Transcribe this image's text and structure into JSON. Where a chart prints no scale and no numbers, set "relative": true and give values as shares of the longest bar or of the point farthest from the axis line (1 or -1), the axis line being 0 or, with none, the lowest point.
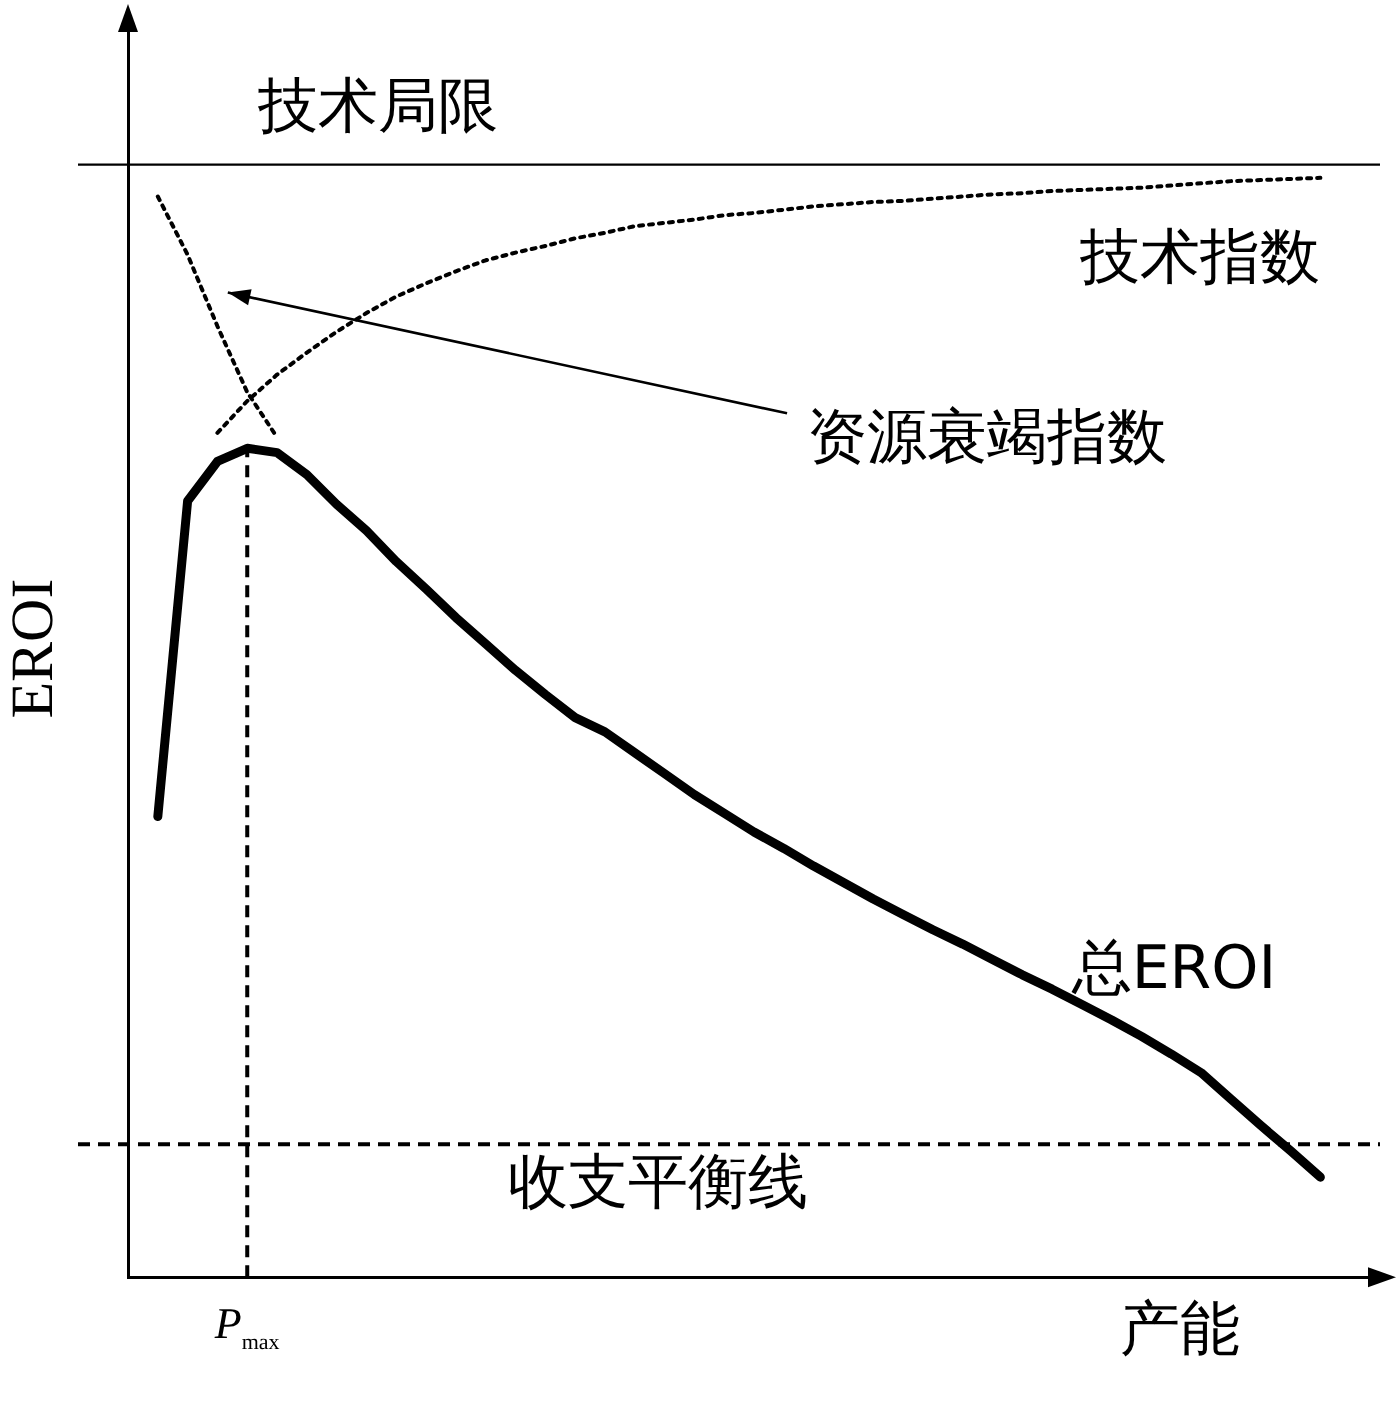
{
  "chart_data": {
    "type": "line",
    "relative": true,
    "xlabel": "产能",
    "ylabel": "EROI",
    "grid": false,
    "legend": false,
    "marker": "none",
    "categories": [
      null,
      null,
      null,
      null,
      null,
      null,
      null,
      null,
      null,
      null,
      null,
      null,
      null,
      null,
      null,
      null,
      null,
      null,
      null,
      null,
      null,
      null,
      null,
      null,
      null,
      null,
      null,
      null,
      null,
      null,
      null,
      null,
      null,
      null,
      null,
      null,
      null,
      null,
      null,
      null,
      null,
      null,
      null
    ],
    "series": [
      {
        "name": "技术指数",
        "color": "#000000",
        "line_style": "dotted",
        "values": [
          null,
          null,
          null,
          0.768,
          0.797,
          0.821,
          0.841,
          0.86,
          0.877,
          0.892,
          0.904,
          0.915,
          0.925,
          0.932,
          0.938,
          0.945,
          0.95,
          0.956,
          0.959,
          0.962,
          0.966,
          0.968,
          0.971,
          0.974,
          0.976,
          0.978,
          0.979,
          0.981,
          0.983,
          0.985,
          0.986,
          0.988,
          0.989,
          0.99,
          0.991,
          0.993,
          0.995,
          0.997,
          0.998,
          0.999,
          1.0,
          null,
          null
        ]
      },
      {
        "name": "资源衰竭指数",
        "color": "#000000",
        "line_style": "dotted",
        "values": [
          null,
          0.983,
          0.93,
          0.865,
          0.805,
          0.764,
          null,
          null,
          null,
          null,
          null,
          null,
          null,
          null,
          null,
          null,
          null,
          null,
          null,
          null,
          null,
          null,
          null,
          null,
          null,
          null,
          null,
          null,
          null,
          null,
          null,
          null,
          null,
          null,
          null,
          null,
          null,
          null,
          null,
          null,
          null,
          null,
          null
        ]
      },
      {
        "name": "总EROI",
        "color": "#000000",
        "line_style": "solid",
        "values": [
          null,
          0.419,
          0.706,
          0.742,
          0.754,
          0.75,
          0.73,
          0.703,
          0.679,
          0.651,
          0.626,
          0.6,
          0.576,
          0.552,
          0.53,
          0.509,
          0.496,
          0.477,
          0.458,
          0.439,
          0.422,
          0.405,
          0.39,
          0.374,
          0.359,
          0.344,
          0.33,
          0.316,
          0.303,
          0.289,
          0.275,
          0.262,
          0.248,
          0.234,
          0.219,
          0.203,
          0.186,
          0.162,
          0.138,
          0.115,
          0.091,
          null,
          null
        ]
      }
    ],
    "ref_lines": [
      {
        "axis": "y",
        "value": 1.012,
        "label": "技术局限",
        "line_style": "solid"
      },
      {
        "axis": "y",
        "value": 0.121,
        "label": "收支平衡线",
        "line_style": "dashed"
      },
      {
        "axis": "x",
        "label": "P$_{max}$",
        "line_style": "dashed"
      }
    ]
  }
}
